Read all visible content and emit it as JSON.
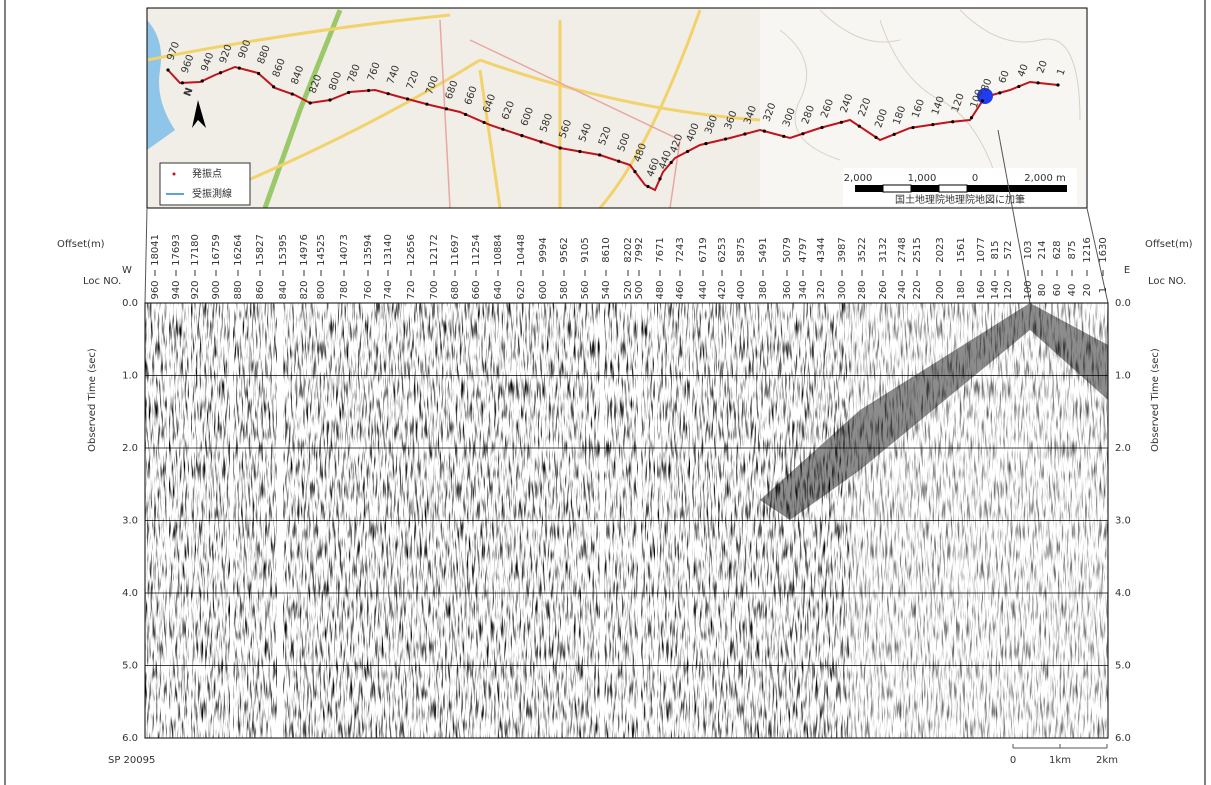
{
  "map": {
    "north": "N",
    "legend": [
      "発振点",
      "受振測線"
    ],
    "scale": [
      "2,000",
      "1,000",
      "0",
      "2,000 m"
    ],
    "credit": "国土地理院地理院地図に加筆",
    "route_labels": [
      "970",
      "960",
      "940",
      "920",
      "900",
      "880",
      "860",
      "840",
      "820",
      "800",
      "780",
      "760",
      "740",
      "720",
      "700",
      "680",
      "660",
      "640",
      "620",
      "600",
      "580",
      "560",
      "540",
      "520",
      "500",
      "480",
      "460",
      "440",
      "420",
      "400",
      "380",
      "360",
      "340",
      "320",
      "300",
      "280",
      "260",
      "240",
      "220",
      "200",
      "180",
      "160",
      "140",
      "120",
      "100",
      "80",
      "60",
      "40",
      "20",
      "1"
    ]
  },
  "gather": {
    "west": "W",
    "east": "E",
    "offset_title": "Offset(m)",
    "loc_title": "Loc NO.",
    "y_title": "Observed Time (sec)",
    "yticks": [
      "0.0",
      "1.0",
      "2.0",
      "3.0",
      "4.0",
      "5.0",
      "6.0"
    ],
    "locs": [
      "960",
      "940",
      "920",
      "900",
      "880",
      "860",
      "840",
      "820",
      "800",
      "780",
      "760",
      "740",
      "720",
      "700",
      "680",
      "660",
      "640",
      "620",
      "600",
      "580",
      "560",
      "540",
      "520",
      "500",
      "480",
      "460",
      "440",
      "420",
      "400",
      "380",
      "360",
      "340",
      "320",
      "300",
      "280",
      "260",
      "240",
      "220",
      "200",
      "180",
      "160",
      "140",
      "120",
      "100",
      "80",
      "60",
      "40",
      "20",
      "1"
    ],
    "offsets": [
      "18041",
      "17693",
      "17180",
      "16759",
      "16264",
      "15827",
      "15395",
      "14976",
      "14525",
      "14073",
      "13594",
      "13140",
      "12656",
      "12172",
      "11697",
      "11254",
      "10884",
      "10448",
      "9994",
      "9562",
      "9105",
      "8610",
      "8202",
      "7992",
      "7671",
      "7243",
      "6719",
      "6253",
      "5875",
      "5491",
      "5079",
      "4797",
      "4344",
      "3987",
      "3522",
      "3132",
      "2748",
      "2515",
      "2023",
      "1561",
      "1077",
      "815",
      "572",
      "103",
      "214",
      "628",
      "875",
      "1216",
      "1630"
    ],
    "shot": "SP 20095",
    "scale": [
      "0",
      "1km",
      "2km"
    ]
  }
}
